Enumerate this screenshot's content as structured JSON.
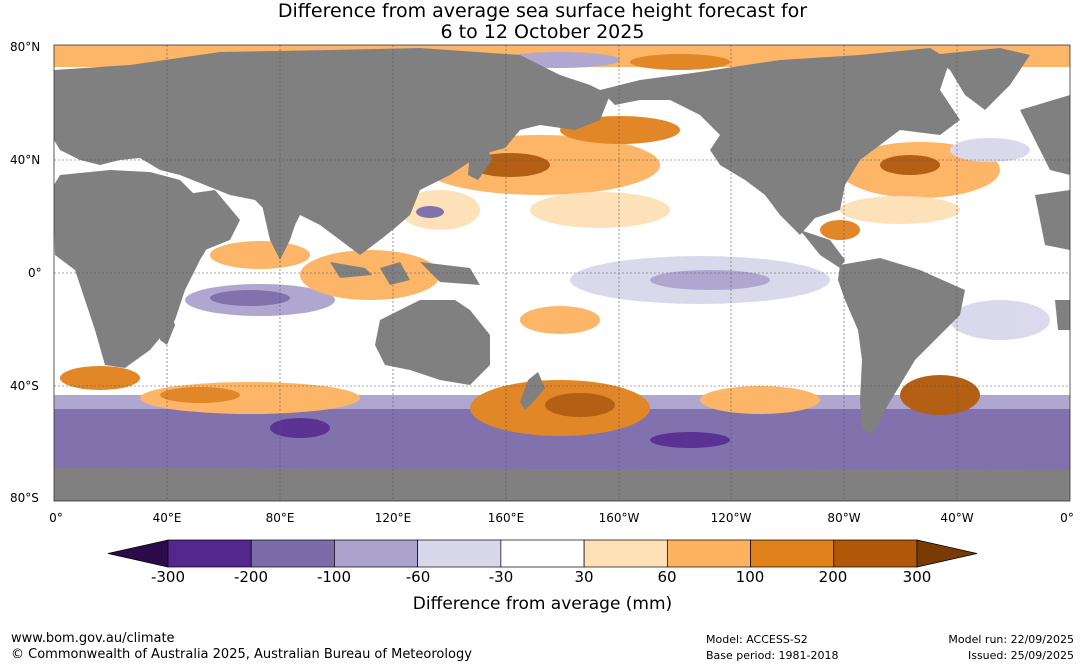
{
  "title": {
    "line1": "Difference from average sea surface height forecast for",
    "line2": "6 to 12 October 2025"
  },
  "map": {
    "lat_labels": [
      "80°N",
      "40°N",
      "0°",
      "40°S",
      "80°S"
    ],
    "lon_labels": [
      "0°",
      "40°E",
      "80°E",
      "120°E",
      "160°E",
      "160°W",
      "120°W",
      "80°W",
      "40°W",
      "0°"
    ],
    "colors": {
      "land": "#808080",
      "grid": "#555555"
    }
  },
  "colorbar": {
    "title": "Difference from average (mm)",
    "tick_labels": [
      "-300",
      "-200",
      "-100",
      "-60",
      "-30",
      "30",
      "60",
      "100",
      "200",
      "300"
    ],
    "colors": [
      "#2d0a4a",
      "#54278f",
      "#7b6ba9",
      "#aca3cf",
      "#d9d7ea",
      "#ffffff",
      "#fde0b6",
      "#fdb25f",
      "#e0811c",
      "#b05808",
      "#7a3a06"
    ]
  },
  "footer": {
    "website": "www.bom.gov.au/climate",
    "copyright": "© Commonwealth of Australia 2025, Australian Bureau of Meteorology",
    "model": "Model: ACCESS-S2",
    "base_period": "Base period: 1981-2018",
    "model_run": "Model run: 22/09/2025",
    "issued": "Issued: 25/09/2025"
  }
}
